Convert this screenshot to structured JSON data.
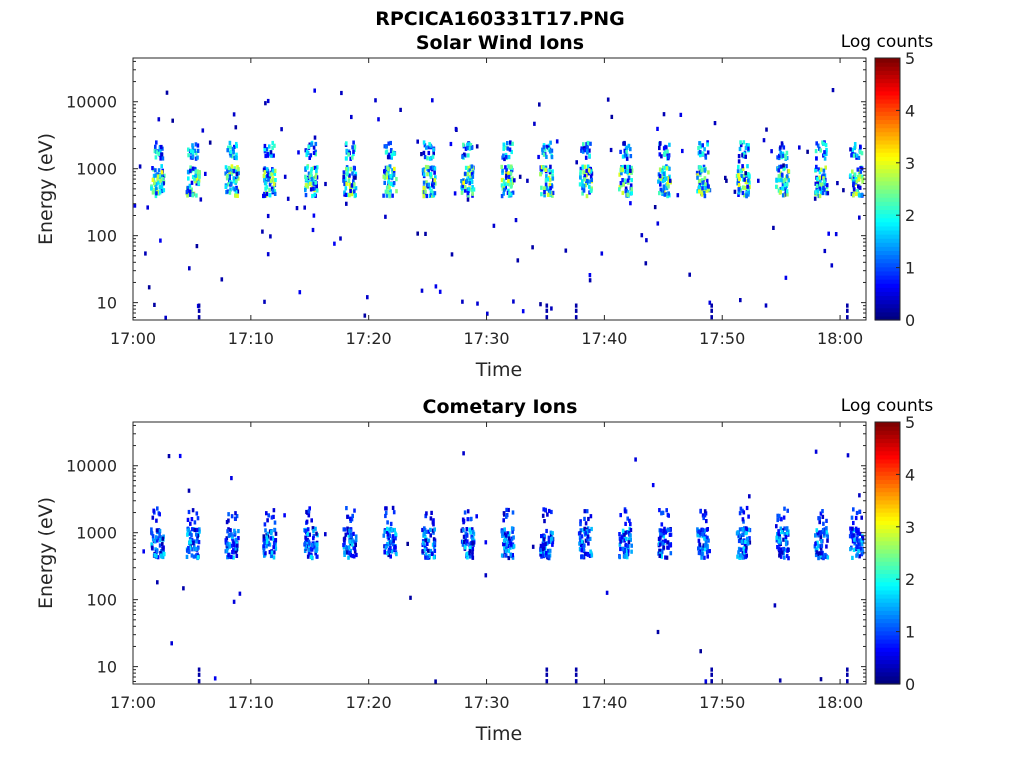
{
  "figure_title": "RPCICA160331T17.PNG",
  "chart_data": [
    {
      "type": "heatmap",
      "title": "Solar Wind Ions",
      "xlabel": "Time",
      "ylabel": "Energy (eV)",
      "x_ticks": [
        "17:00",
        "17:10",
        "17:20",
        "17:30",
        "17:40",
        "17:50",
        "18:00"
      ],
      "x_range": [
        "17:00",
        "18:02"
      ],
      "y_ticks": [
        "10",
        "100",
        "1000",
        "10000"
      ],
      "y_scale": "log",
      "y_range": [
        5.5,
        45000
      ],
      "colorbar": {
        "label": "Log counts",
        "ticks": [
          "0",
          "1",
          "2",
          "3",
          "4",
          "5"
        ],
        "range": [
          0,
          5
        ],
        "colormap": "jet"
      },
      "description": "Periodic bursts of solar wind ions roughly every 3.3 minutes, peak ~700-1000 eV reaching ~3 log counts, with secondary alpha band near 2000 eV and sparse noise",
      "pulse_times_min": [
        2,
        5,
        8.3,
        11.5,
        15,
        18.3,
        21.7,
        25,
        28.3,
        31.7,
        35,
        38.3,
        41.7,
        45,
        48.3,
        51.7,
        55,
        58.3,
        61.3
      ],
      "core_energy_ev": 700,
      "alpha_energy_ev": 2000,
      "peak_log_counts": 3
    },
    {
      "type": "heatmap",
      "title": "Cometary Ions",
      "xlabel": "Time",
      "ylabel": "Energy (eV)",
      "x_ticks": [
        "17:00",
        "17:10",
        "17:20",
        "17:30",
        "17:40",
        "17:50",
        "18:00"
      ],
      "x_range": [
        "17:00",
        "18:02"
      ],
      "y_ticks": [
        "10",
        "100",
        "1000",
        "10000"
      ],
      "y_scale": "log",
      "y_range": [
        5.5,
        45000
      ],
      "colorbar": {
        "label": "Log counts",
        "ticks": [
          "0",
          "1",
          "2",
          "3",
          "4",
          "5"
        ],
        "range": [
          0,
          5
        ],
        "colormap": "jet"
      },
      "description": "Weak bursts near 700-1000 eV with mostly 1-2 log counts, similar periodicity; sparse low-energy noise",
      "pulse_times_min": [
        2,
        5,
        8.3,
        11.5,
        15,
        18.3,
        21.7,
        25,
        28.3,
        31.7,
        35,
        38.3,
        41.7,
        45,
        48.3,
        51.7,
        55,
        58.3,
        61.3
      ],
      "core_energy_ev": 750,
      "peak_log_counts": 2
    }
  ]
}
